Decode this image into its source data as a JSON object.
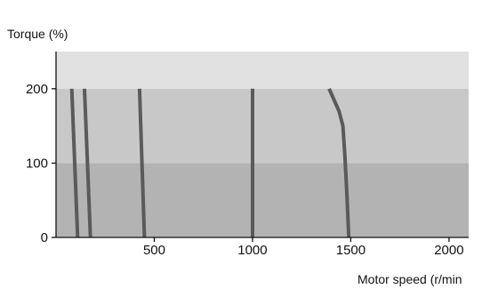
{
  "chart_data": {
    "type": "line",
    "ylabel": "Torque (%)",
    "xlabel": "Motor speed (r/min",
    "xlim": [
      0,
      2100
    ],
    "ylim": [
      0,
      250
    ],
    "x_ticks": [
      500,
      1000,
      1500,
      2000
    ],
    "x_tick_labels": [
      "500",
      "1000",
      "1500",
      "2000"
    ],
    "y_ticks": [
      0,
      100,
      200
    ],
    "y_tick_labels": [
      "0",
      "100",
      "200"
    ],
    "grid": false,
    "bands": [
      {
        "from": 0,
        "to": 100,
        "color": "#b3b3b3"
      },
      {
        "from": 100,
        "to": 200,
        "color": "#c8c8c8"
      },
      {
        "from": 200,
        "to": 250,
        "color": "#e1e1e1"
      }
    ],
    "series": [
      {
        "points": [
          [
            80,
            200
          ],
          [
            110,
            0
          ]
        ]
      },
      {
        "points": [
          [
            145,
            200
          ],
          [
            175,
            0
          ]
        ]
      },
      {
        "points": [
          [
            425,
            200
          ],
          [
            450,
            0
          ]
        ]
      },
      {
        "points": [
          [
            1000,
            200
          ],
          [
            1000,
            0
          ]
        ]
      },
      {
        "points": [
          [
            1390,
            200
          ],
          [
            1440,
            170
          ],
          [
            1460,
            150
          ],
          [
            1470,
            110
          ],
          [
            1480,
            60
          ],
          [
            1490,
            0
          ]
        ]
      }
    ],
    "line_color": "#5a5a5a"
  }
}
